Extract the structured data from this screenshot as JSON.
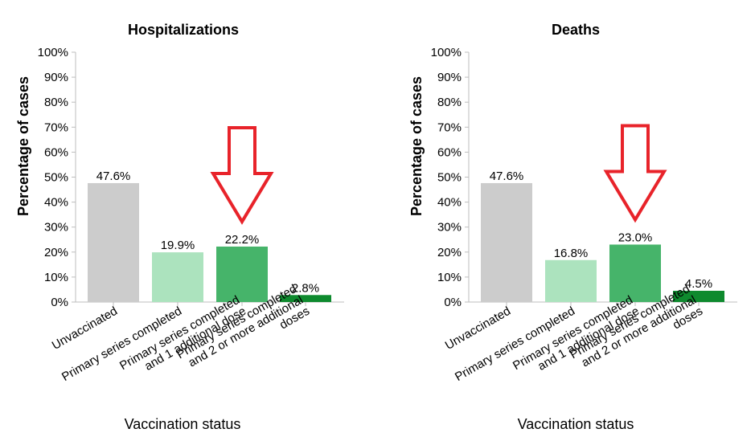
{
  "chart_data": [
    {
      "type": "bar",
      "title": "Hospitalizations",
      "ylabel": "Percentage of cases",
      "xlabel": "Vaccination status",
      "ylim": [
        0,
        100
      ],
      "ytick_labels": [
        "0%",
        "10%",
        "20%",
        "30%",
        "40%",
        "50%",
        "60%",
        "70%",
        "80%",
        "90%",
        "100%"
      ],
      "categories": [
        [
          "Unvaccinated"
        ],
        [
          "Primary series completed"
        ],
        [
          "Primary series completed",
          "and 1 additional dose"
        ],
        [
          "Primary series completed",
          "and 2 or more additional",
          "doses"
        ]
      ],
      "values": [
        47.6,
        19.9,
        22.2,
        2.8
      ],
      "data_labels": [
        "47.6%",
        "19.9%",
        "22.2%",
        "2.8%"
      ],
      "colors": [
        "#cccccc",
        "#ace3be",
        "#46b46a",
        "#0e8a2e"
      ],
      "annotation": {
        "type": "arrow",
        "target_index": 2,
        "color": "#e8232a"
      }
    },
    {
      "type": "bar",
      "title": "Deaths",
      "ylabel": "Percentage of cases",
      "xlabel": "Vaccination status",
      "ylim": [
        0,
        100
      ],
      "ytick_labels": [
        "0%",
        "10%",
        "20%",
        "30%",
        "40%",
        "50%",
        "60%",
        "70%",
        "80%",
        "90%",
        "100%"
      ],
      "categories": [
        [
          "Unvaccinated"
        ],
        [
          "Primary series completed"
        ],
        [
          "Primary series completed",
          "and 1 additional dose"
        ],
        [
          "Primary series completed",
          "and 2 or more additional",
          "doses"
        ]
      ],
      "values": [
        47.6,
        16.8,
        23.0,
        4.5
      ],
      "data_labels": [
        "47.6%",
        "16.8%",
        "23.0%",
        "4.5%"
      ],
      "colors": [
        "#cccccc",
        "#ace3be",
        "#46b46a",
        "#0e8a2e"
      ],
      "annotation": {
        "type": "arrow",
        "target_index": 2,
        "color": "#e8232a"
      }
    }
  ]
}
